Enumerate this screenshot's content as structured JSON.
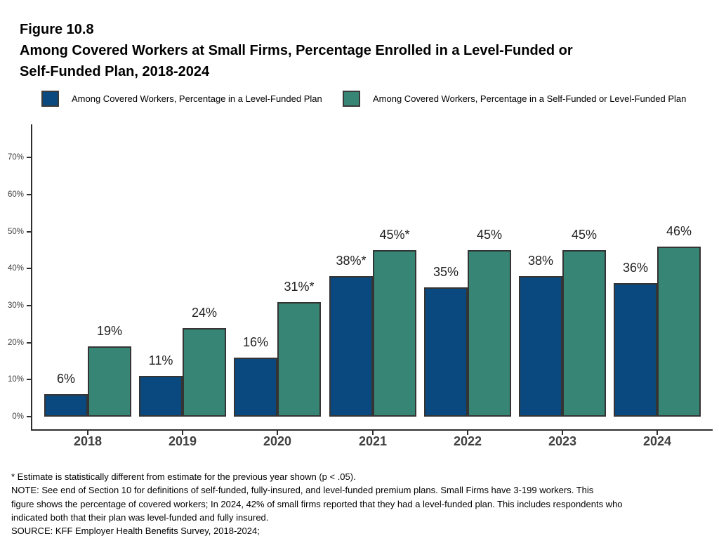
{
  "figure": {
    "label": "Figure 10.8",
    "title_line1": "Among Covered Workers at Small Firms, Percentage Enrolled in a Level-Funded or",
    "title_line2": "Self-Funded Plan, 2018-2024"
  },
  "legend": [
    {
      "label": "Among Covered Workers, Percentage in a Level-Funded Plan",
      "color": "#0A4980"
    },
    {
      "label": "Among Covered Workers, Percentage in a Self-Funded or Level-Funded Plan",
      "color": "#378575"
    }
  ],
  "chart_data": {
    "type": "bar",
    "title": "Among Covered Workers at Small Firms, Percentage Enrolled in a Level-Funded or Self-Funded Plan, 2018-2024",
    "categories": [
      "2018",
      "2019",
      "2020",
      "2021",
      "2022",
      "2023",
      "2024"
    ],
    "series": [
      {
        "name": "Among Covered Workers, Percentage in a Level-Funded Plan",
        "color": "#0A4980",
        "values": [
          6,
          11,
          16,
          38,
          35,
          38,
          36
        ],
        "labels": [
          "6%",
          "11%",
          "16%",
          "38%*",
          "35%",
          "38%",
          "36%"
        ]
      },
      {
        "name": "Among Covered Workers, Percentage in a Self-Funded or Level-Funded Plan",
        "color": "#378575",
        "values": [
          19,
          24,
          31,
          45,
          45,
          45,
          46
        ],
        "labels": [
          "19%",
          "24%",
          "31%*",
          "45%*",
          "45%",
          "45%",
          "46%"
        ]
      }
    ],
    "xlabel": "",
    "ylabel": "",
    "ylim": [
      0,
      78
    ],
    "ytick_values": [
      0,
      10,
      20,
      30,
      40,
      50,
      60,
      70
    ],
    "ytick_labels": [
      "0%",
      "10%",
      "20%",
      "30%",
      "40%",
      "50%",
      "60%",
      "70%"
    ],
    "grid": false,
    "legend_position": "top",
    "bar_outline_color": "#343434"
  },
  "footnotes": {
    "asterisk": "* Estimate is statistically different from estimate for the previous year shown (p < .05).",
    "note_lines": [
      "NOTE: See end of Section 10 for definitions of self-funded, fully-insured, and level-funded premium plans. Small Firms have 3-199 workers. This",
      "figure shows the percentage of covered workers; In 2024, 42% of small firms reported that they had a level-funded plan. This includes respondents who",
      "indicated both that their plan was level-funded and fully insured."
    ],
    "source": "SOURCE: KFF Employer Health Benefits Survey, 2018-2024;"
  }
}
